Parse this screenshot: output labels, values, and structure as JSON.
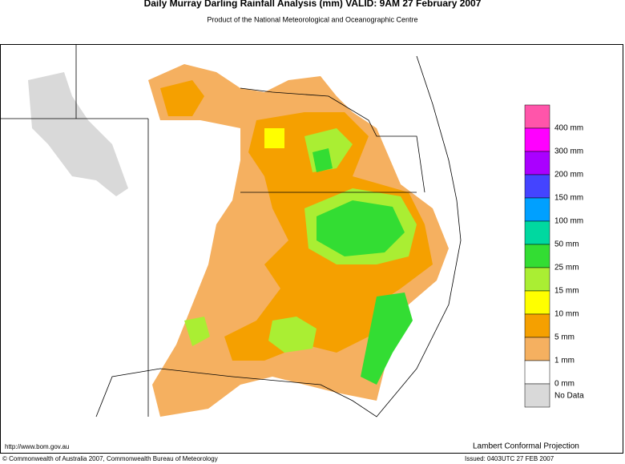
{
  "header": {
    "title": "Daily Murray Darling Rainfall Analysis (mm)  VALID: 9AM 27 February 2007",
    "subtitle": "Product of the National Meteorological and Oceanographic Centre"
  },
  "legend": {
    "labels": [
      "400 mm",
      "300 mm",
      "200 mm",
      "150 mm",
      "100 mm",
      "50 mm",
      "25 mm",
      "15 mm",
      "10 mm",
      "5 mm",
      "1 mm",
      "0 mm",
      "No Data"
    ]
  },
  "footer": {
    "url": "http://www.bom.gov.au",
    "projection": "Lambert Conformal Projection",
    "copyright": "© Commonwealth of Australia 2007, Commonwealth Bureau of Meteorology",
    "issued": "Issued: 0403UTC 27 FEB 2007"
  }
}
